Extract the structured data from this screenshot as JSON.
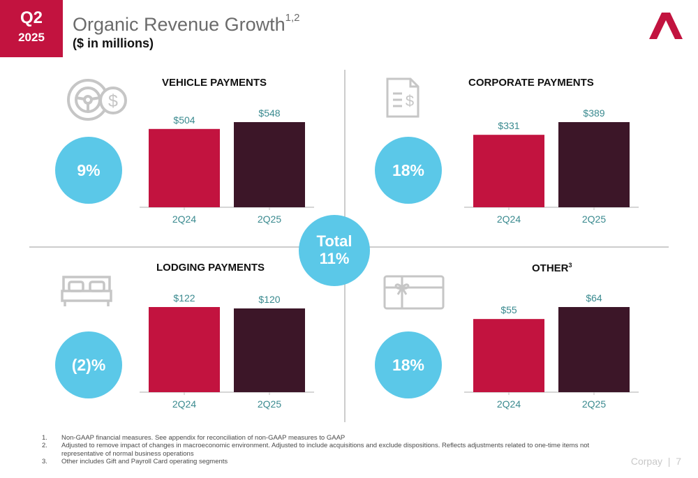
{
  "badge": {
    "quarter": "Q2",
    "year": "2025"
  },
  "header": {
    "title": "Organic Revenue Growth",
    "title_sup": "1,2",
    "subtitle": "($ in millions)"
  },
  "colors": {
    "accent": "#c2133f",
    "dark": "#3c1628",
    "bubble": "#5bc8e8",
    "label": "#3a8a8f"
  },
  "total": {
    "label": "Total",
    "value": "11%"
  },
  "chart_data": [
    {
      "type": "bar",
      "title": "VEHICLE PAYMENTS",
      "categories": [
        "2Q24",
        "2Q25"
      ],
      "values": [
        504,
        548
      ],
      "labels": [
        "$504",
        "$548"
      ],
      "growth": "9%",
      "icon": "steering-wheel-dollar-icon"
    },
    {
      "type": "bar",
      "title": "CORPORATE PAYMENTS",
      "categories": [
        "2Q24",
        "2Q25"
      ],
      "values": [
        331,
        389
      ],
      "labels": [
        "$331",
        "$389"
      ],
      "growth": "18%",
      "icon": "invoice-dollar-icon"
    },
    {
      "type": "bar",
      "title": "LODGING PAYMENTS",
      "categories": [
        "2Q24",
        "2Q25"
      ],
      "values": [
        122,
        120
      ],
      "labels": [
        "$122",
        "$120"
      ],
      "growth": "(2)%",
      "icon": "bed-icon"
    },
    {
      "type": "bar",
      "title": "OTHER",
      "title_sup": "3",
      "categories": [
        "2Q24",
        "2Q25"
      ],
      "values": [
        55,
        64
      ],
      "labels": [
        "$55",
        "$64"
      ],
      "growth": "18%",
      "icon": "gift-card-icon"
    }
  ],
  "footnotes": [
    {
      "num": "1.",
      "text": "Non-GAAP financial measures. See appendix for reconciliation of non-GAAP measures to GAAP"
    },
    {
      "num": "2.",
      "text": "Adjusted to remove impact of changes in macroeconomic environment. Adjusted to include acquisitions and exclude dispositions. Reflects adjustments related to one-time items not representative of normal business operations"
    },
    {
      "num": "3.",
      "text": "Other includes Gift and Payroll Card operating segments"
    }
  ],
  "footer": {
    "brand": "Corpay",
    "separator": "|",
    "page": "7"
  }
}
